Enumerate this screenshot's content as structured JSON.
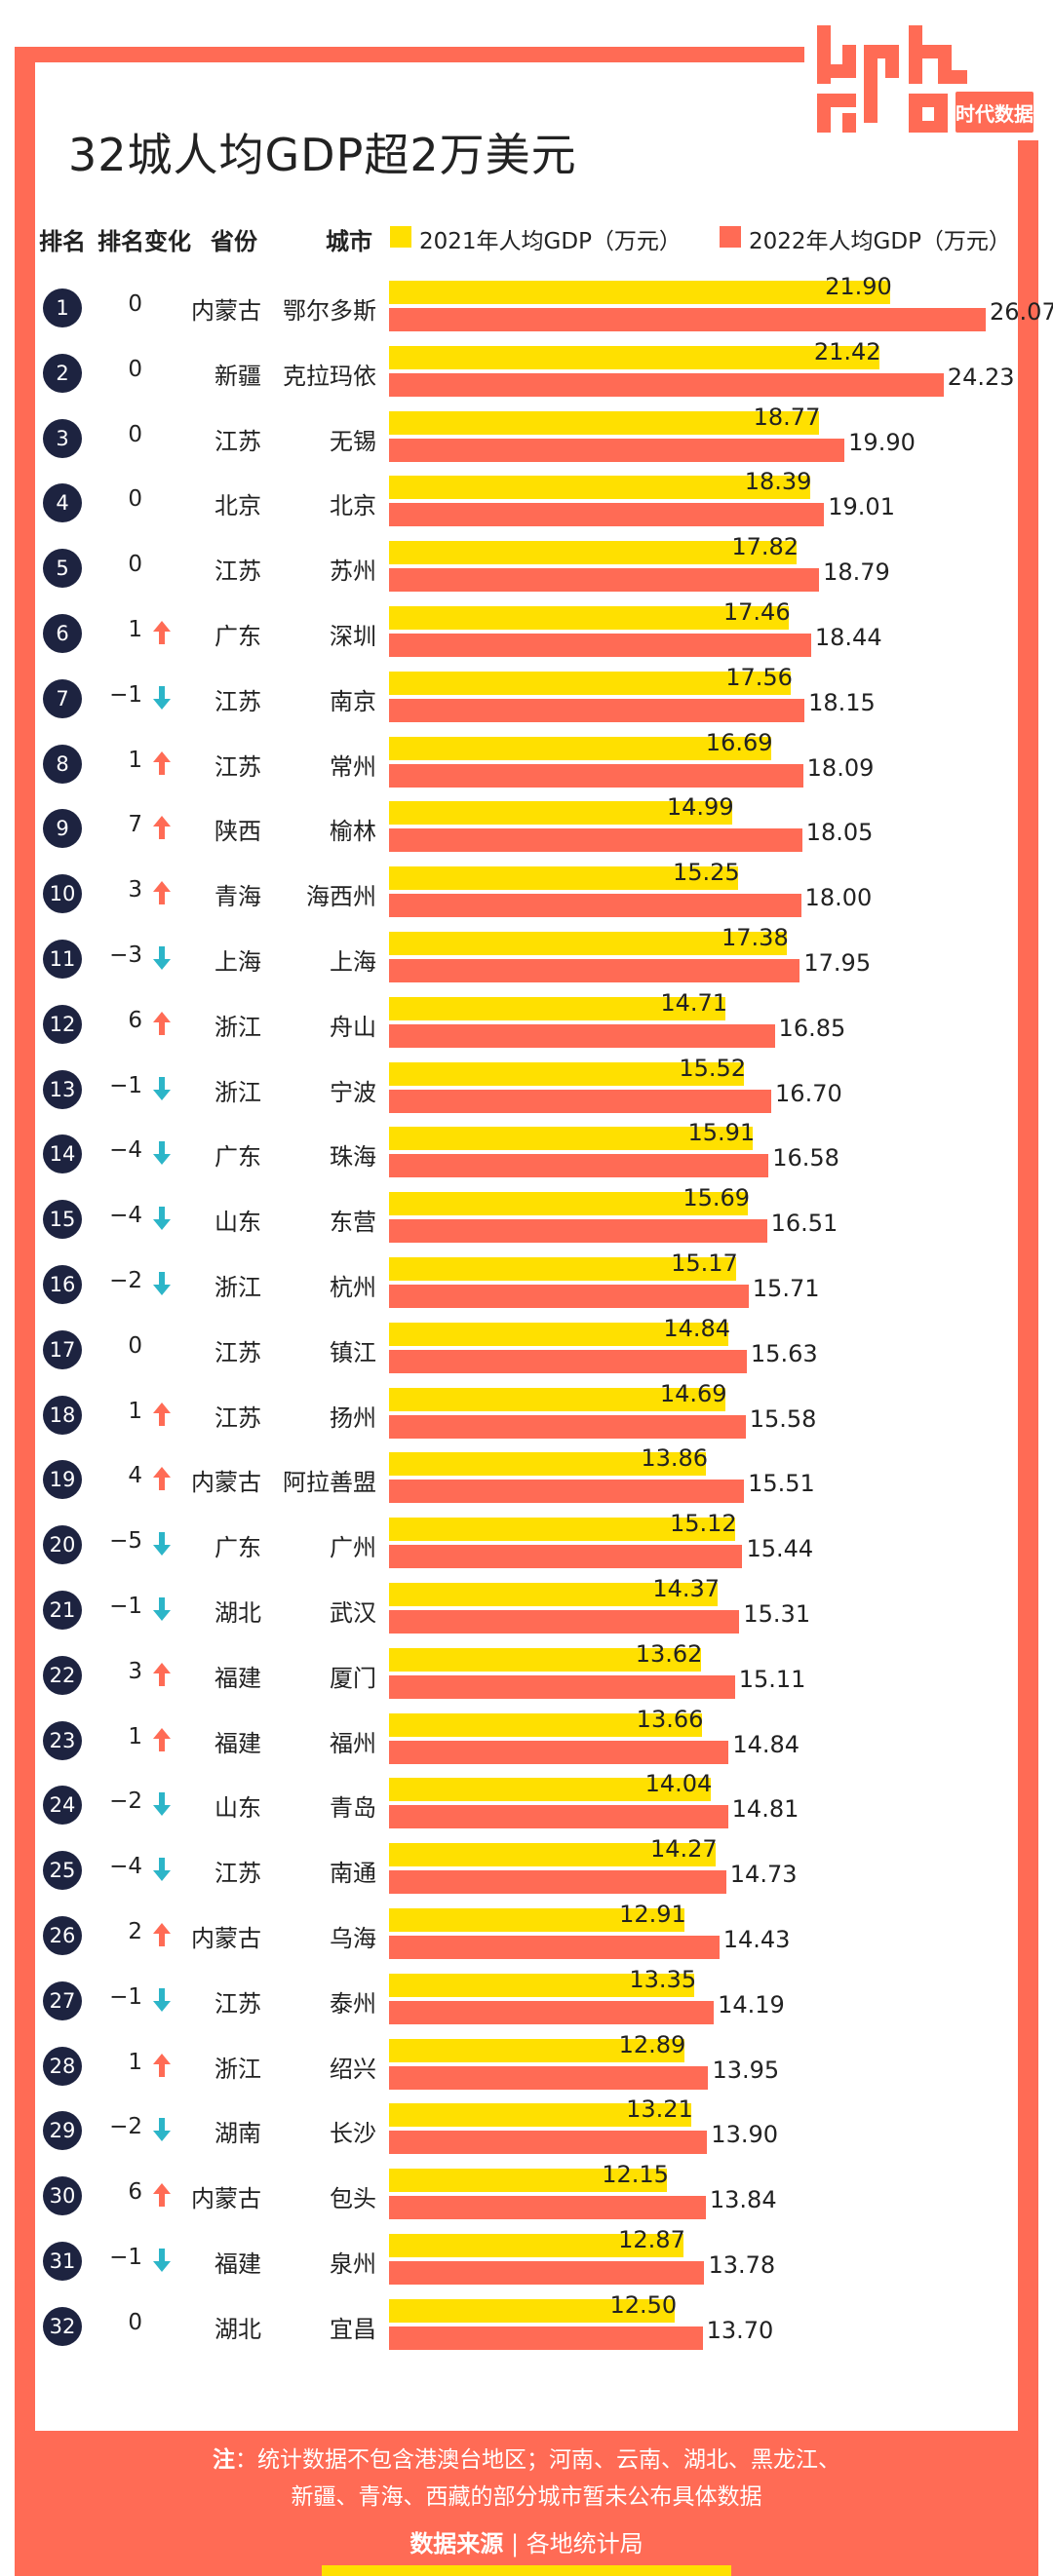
{
  "title": "32城人均GDP超2万美元",
  "logo": {
    "top": "data",
    "bottom": "GOOD",
    "text": "时代数据"
  },
  "headers": {
    "rank": "排名",
    "change": "排名变化",
    "province": "省份",
    "city": "城市"
  },
  "colors": {
    "series_2021": "#FFE000",
    "series_2022": "#FF6B55",
    "rank_circle": "#1D2340",
    "up": "#FF6B55",
    "down": "#2CB5C8"
  },
  "chart_data": {
    "type": "bar",
    "orientation": "horizontal",
    "title": "32城人均GDP超2万美元",
    "series": [
      {
        "name": "2021年人均GDP（万元）",
        "color": "#FFE000"
      },
      {
        "name": "2022年人均GDP（万元）",
        "color": "#FF6B55"
      }
    ],
    "rows": [
      {
        "rank": "1",
        "change": "0",
        "dir": "none",
        "province": "内蒙古",
        "city": "鄂尔多斯",
        "v2021": 21.9,
        "v2022": 26.07
      },
      {
        "rank": "2",
        "change": "0",
        "dir": "none",
        "province": "新疆",
        "city": "克拉玛依",
        "v2021": 21.42,
        "v2022": 24.23
      },
      {
        "rank": "3",
        "change": "0",
        "dir": "none",
        "province": "江苏",
        "city": "无锡",
        "v2021": 18.77,
        "v2022": 19.9
      },
      {
        "rank": "4",
        "change": "0",
        "dir": "none",
        "province": "北京",
        "city": "北京",
        "v2021": 18.39,
        "v2022": 19.01
      },
      {
        "rank": "5",
        "change": "0",
        "dir": "none",
        "province": "江苏",
        "city": "苏州",
        "v2021": 17.82,
        "v2022": 18.79
      },
      {
        "rank": "6",
        "change": "1",
        "dir": "up",
        "province": "广东",
        "city": "深圳",
        "v2021": 17.46,
        "v2022": 18.44
      },
      {
        "rank": "7",
        "change": "−1",
        "dir": "down",
        "province": "江苏",
        "city": "南京",
        "v2021": 17.56,
        "v2022": 18.15
      },
      {
        "rank": "8",
        "change": "1",
        "dir": "up",
        "province": "江苏",
        "city": "常州",
        "v2021": 16.69,
        "v2022": 18.09
      },
      {
        "rank": "9",
        "change": "7",
        "dir": "up",
        "province": "陕西",
        "city": "榆林",
        "v2021": 14.99,
        "v2022": 18.05
      },
      {
        "rank": "10",
        "change": "3",
        "dir": "up",
        "province": "青海",
        "city": "海西州",
        "v2021": 15.25,
        "v2022": 18.0
      },
      {
        "rank": "11",
        "change": "−3",
        "dir": "down",
        "province": "上海",
        "city": "上海",
        "v2021": 17.38,
        "v2022": 17.95
      },
      {
        "rank": "12",
        "change": "6",
        "dir": "up",
        "province": "浙江",
        "city": "舟山",
        "v2021": 14.71,
        "v2022": 16.85
      },
      {
        "rank": "13",
        "change": "−1",
        "dir": "down",
        "province": "浙江",
        "city": "宁波",
        "v2021": 15.52,
        "v2022": 16.7
      },
      {
        "rank": "14",
        "change": "−4",
        "dir": "down",
        "province": "广东",
        "city": "珠海",
        "v2021": 15.91,
        "v2022": 16.58
      },
      {
        "rank": "15",
        "change": "−4",
        "dir": "down",
        "province": "山东",
        "city": "东营",
        "v2021": 15.69,
        "v2022": 16.51
      },
      {
        "rank": "16",
        "change": "−2",
        "dir": "down",
        "province": "浙江",
        "city": "杭州",
        "v2021": 15.17,
        "v2022": 15.71
      },
      {
        "rank": "17",
        "change": "0",
        "dir": "none",
        "province": "江苏",
        "city": "镇江",
        "v2021": 14.84,
        "v2022": 15.63
      },
      {
        "rank": "18",
        "change": "1",
        "dir": "up",
        "province": "江苏",
        "city": "扬州",
        "v2021": 14.69,
        "v2022": 15.58
      },
      {
        "rank": "19",
        "change": "4",
        "dir": "up",
        "province": "内蒙古",
        "city": "阿拉善盟",
        "v2021": 13.86,
        "v2022": 15.51
      },
      {
        "rank": "20",
        "change": "−5",
        "dir": "down",
        "province": "广东",
        "city": "广州",
        "v2021": 15.12,
        "v2022": 15.44
      },
      {
        "rank": "21",
        "change": "−1",
        "dir": "down",
        "province": "湖北",
        "city": "武汉",
        "v2021": 14.37,
        "v2022": 15.31
      },
      {
        "rank": "22",
        "change": "3",
        "dir": "up",
        "province": "福建",
        "city": "厦门",
        "v2021": 13.62,
        "v2022": 15.11
      },
      {
        "rank": "23",
        "change": "1",
        "dir": "up",
        "province": "福建",
        "city": "福州",
        "v2021": 13.66,
        "v2022": 14.84
      },
      {
        "rank": "24",
        "change": "−2",
        "dir": "down",
        "province": "山东",
        "city": "青岛",
        "v2021": 14.04,
        "v2022": 14.81
      },
      {
        "rank": "25",
        "change": "−4",
        "dir": "down",
        "province": "江苏",
        "city": "南通",
        "v2021": 14.27,
        "v2022": 14.73
      },
      {
        "rank": "26",
        "change": "2",
        "dir": "up",
        "province": "内蒙古",
        "city": "乌海",
        "v2021": 12.91,
        "v2022": 14.43
      },
      {
        "rank": "27",
        "change": "−1",
        "dir": "down",
        "province": "江苏",
        "city": "泰州",
        "v2021": 13.35,
        "v2022": 14.19
      },
      {
        "rank": "28",
        "change": "1",
        "dir": "up",
        "province": "浙江",
        "city": "绍兴",
        "v2021": 12.89,
        "v2022": 13.95
      },
      {
        "rank": "29",
        "change": "−2",
        "dir": "down",
        "province": "湖南",
        "city": "长沙",
        "v2021": 13.21,
        "v2022": 13.9
      },
      {
        "rank": "30",
        "change": "6",
        "dir": "up",
        "province": "内蒙古",
        "city": "包头",
        "v2021": 12.15,
        "v2022": 13.84
      },
      {
        "rank": "31",
        "change": "−1",
        "dir": "down",
        "province": "福建",
        "city": "泉州",
        "v2021": 12.87,
        "v2022": 13.78
      },
      {
        "rank": "32",
        "change": "0",
        "dir": "none",
        "province": "湖北",
        "city": "宜昌",
        "v2021": 12.5,
        "v2022": 13.7
      }
    ]
  },
  "footer": {
    "note_label": "注",
    "note_line1": "：统计数据不包含港澳台地区；河南、云南、湖北、黑龙江、",
    "note_line2": "新疆、青海、西藏的部分城市暂未公布具体数据",
    "source_label": "数据来源",
    "source_sep": "|",
    "source_text": "各地统计局"
  }
}
